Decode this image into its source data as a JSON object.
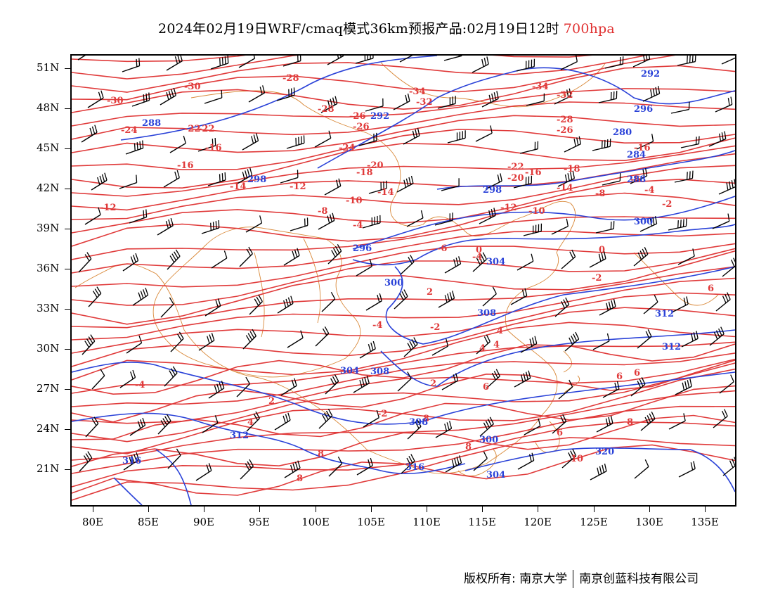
{
  "title": {
    "text": "2024年02月19日WRF/cmaq模式36km预报产品:02月19日12时",
    "level": "700hpa",
    "level_color": "#e03030"
  },
  "axes": {
    "lat_labels": [
      "51N",
      "48N",
      "45N",
      "42N",
      "39N",
      "36N",
      "33N",
      "30N",
      "27N",
      "24N",
      "21N"
    ],
    "lon_labels": [
      "80E",
      "85E",
      "90E",
      "95E",
      "100E",
      "105E",
      "110E",
      "115E",
      "120E",
      "125E",
      "130E",
      "135E"
    ]
  },
  "map": {
    "colors": {
      "temperature_contour": "#e03a3a",
      "height_contour": "#2a42d8",
      "boundary": "#d9893a",
      "wind_barb": "#000000"
    },
    "temperature_labels": [
      "-30",
      "-28",
      "-34",
      "-32",
      "-34",
      "-32",
      "-30",
      "-28",
      "-26",
      "-24",
      "-22",
      "-26",
      "-24",
      "-22",
      "-20",
      "-18",
      "-16",
      "-16",
      "-14",
      "-12",
      "-12",
      "-10",
      "-8",
      "-4",
      "-14",
      "-16",
      "-20",
      "-22",
      "-18",
      "-14",
      "-12",
      "-10",
      "-8",
      "-6",
      "-4",
      "-2",
      "-26",
      "-28",
      "-16",
      "-6",
      "-4",
      "-2",
      "0",
      "2",
      "-2",
      "2",
      "4",
      "4",
      "4",
      "-2",
      "6",
      "6",
      "6",
      "8",
      "8",
      "8",
      "8",
      "8",
      "10",
      "6",
      "6",
      "2",
      "4",
      "-4",
      "-4",
      "0"
    ],
    "height_labels": [
      "288",
      "292",
      "298",
      "298",
      "296",
      "300",
      "304",
      "300",
      "304",
      "308",
      "312",
      "308",
      "304",
      "308",
      "312",
      "312",
      "316",
      "316",
      "320",
      "292",
      "296",
      "280",
      "284",
      "288",
      "300"
    ]
  },
  "footer": {
    "left": "版权所有: 南京大学",
    "right": "南京创蓝科技有限公司"
  }
}
